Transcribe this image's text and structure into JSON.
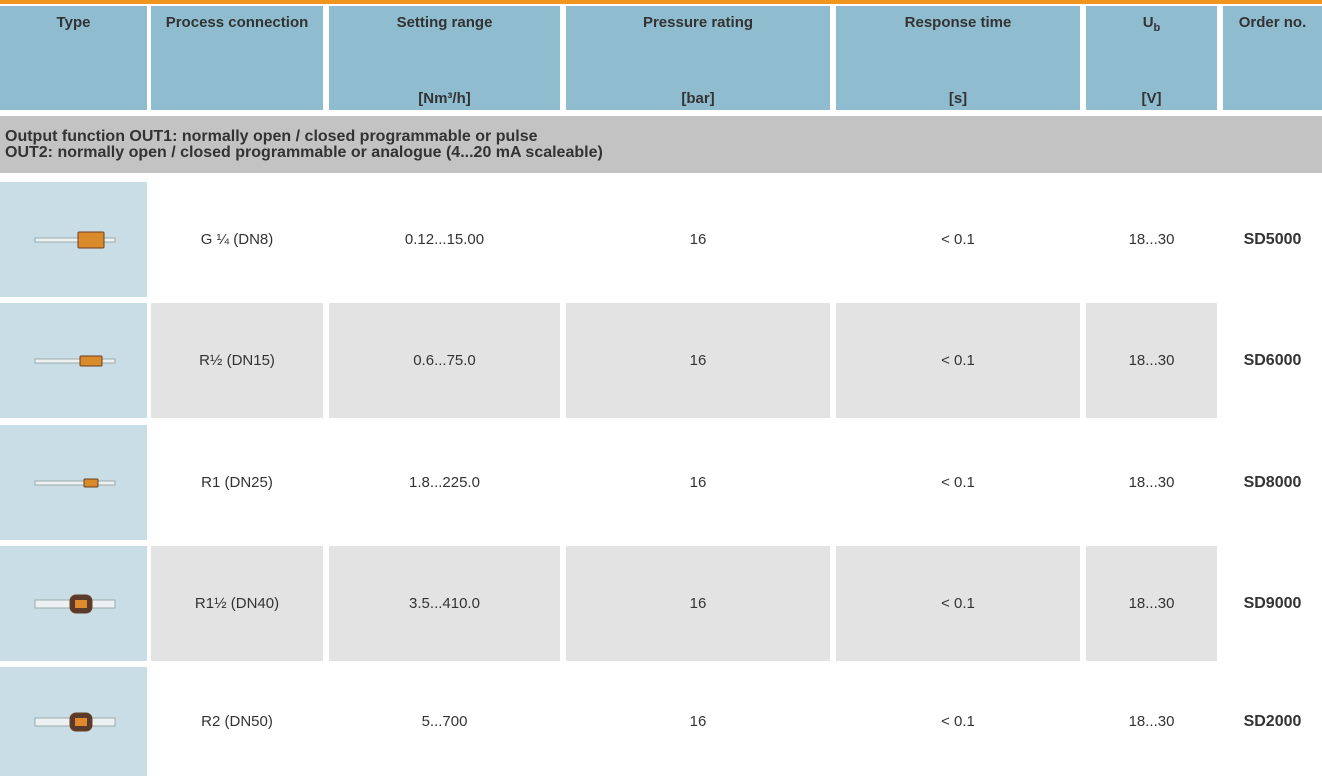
{
  "header": {
    "columns": [
      {
        "label": "Type"
      },
      {
        "label": "Process connection"
      },
      {
        "label": "Setting range",
        "unit": "[Nm³/h]"
      },
      {
        "label": "Pressure rating",
        "unit": "[bar]"
      },
      {
        "label": "Response time",
        "unit": "[s]"
      },
      {
        "label": "U",
        "sub": "b",
        "unit": "[V]"
      },
      {
        "label": "Order no."
      }
    ]
  },
  "section": {
    "lines": [
      "Output function OUT1: normally open / closed programmable or pulse",
      "OUT2: normally open / closed programmable or analogue (4...20 mA scaleable)"
    ]
  },
  "table": {
    "rows": [
      [
        "G ¼ (DN8)",
        "0.12...15.00",
        "16",
        "< 0.1",
        "18...30",
        "SD5000"
      ],
      [
        "R½ (DN15)",
        "0.6...75.0",
        "16",
        "< 0.1",
        "18...30",
        "SD6000"
      ],
      [
        "R1 (DN25)",
        "1.8...225.0",
        "16",
        "< 0.1",
        "18...30",
        "SD8000"
      ],
      [
        "R1½ (DN40)",
        "3.5...410.0",
        "16",
        "< 0.1",
        "18...30",
        "SD9000"
      ],
      [
        "R2 (DN50)",
        "5...700",
        "16",
        "< 0.1",
        "18...30",
        "SD2000"
      ]
    ]
  }
}
